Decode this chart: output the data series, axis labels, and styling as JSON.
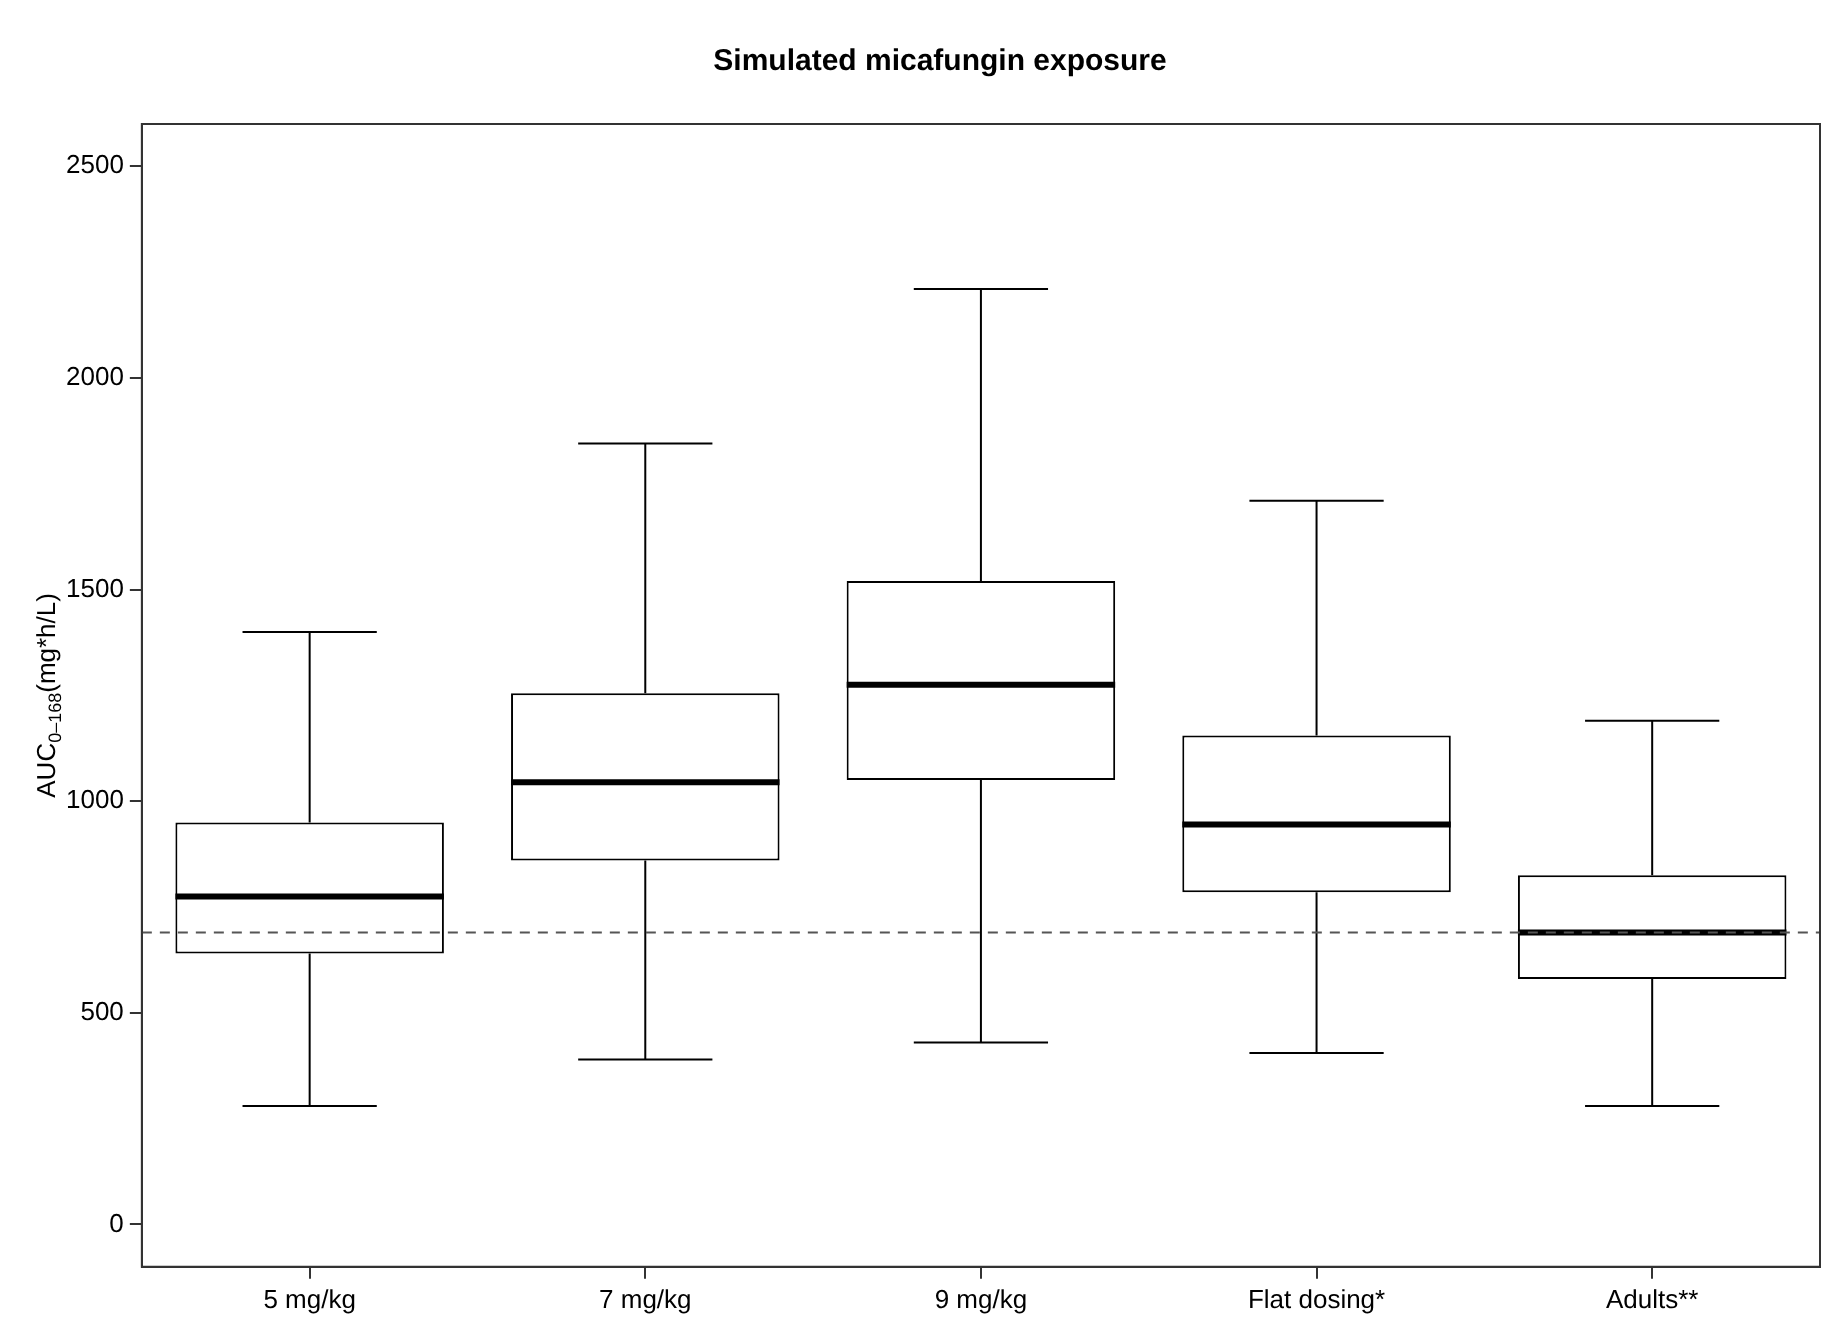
{
  "chart_data": {
    "type": "box",
    "title": "Simulated micafungin exposure",
    "ylabel": "AUC$_{0–168}$(mg*h/L)",
    "categories": [
      "5 mg/kg",
      "7 mg/kg",
      "9 mg/kg",
      "Flat dosing*",
      "Adults**"
    ],
    "boxes": [
      {
        "low": 280,
        "q1": 640,
        "median": 775,
        "q3": 950,
        "high": 1400
      },
      {
        "low": 390,
        "q1": 860,
        "median": 1045,
        "q3": 1255,
        "high": 1845
      },
      {
        "low": 430,
        "q1": 1050,
        "median": 1275,
        "q3": 1520,
        "high": 2210
      },
      {
        "low": 405,
        "q1": 785,
        "median": 945,
        "q3": 1155,
        "high": 1710
      },
      {
        "low": 280,
        "q1": 580,
        "median": 690,
        "q3": 825,
        "high": 1190
      }
    ],
    "color": "#000000",
    "ylim": [
      -100,
      2600
    ],
    "yticks": [
      0,
      500,
      1000,
      1500,
      2000,
      2500
    ],
    "ref_lines": [
      {
        "axis": "y",
        "value": 690,
        "line_style": "dashed",
        "color": "#555555"
      }
    ],
    "grid": false,
    "legend": false
  }
}
